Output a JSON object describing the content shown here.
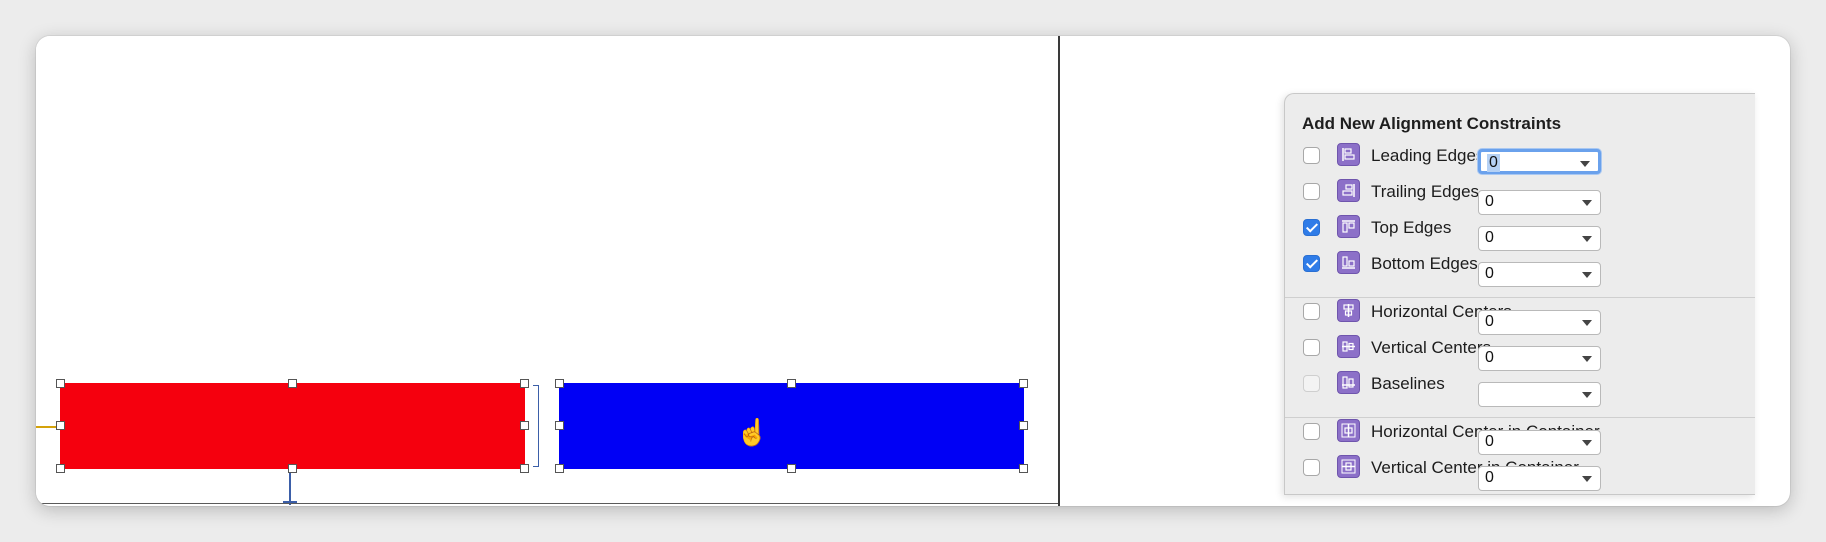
{
  "popover": {
    "title": "Add New Alignment Constraints",
    "rows": [
      {
        "label": "Leading Edges",
        "checked": false,
        "disabled": false,
        "value": "0",
        "icon": "leading-edges-icon"
      },
      {
        "label": "Trailing Edges",
        "checked": false,
        "disabled": false,
        "value": "0",
        "icon": "trailing-edges-icon"
      },
      {
        "label": "Top Edges",
        "checked": true,
        "disabled": false,
        "value": "0",
        "icon": "top-edges-icon"
      },
      {
        "label": "Bottom Edges",
        "checked": true,
        "disabled": false,
        "value": "0",
        "icon": "bottom-edges-icon"
      },
      {
        "label": "Horizontal Centers",
        "checked": false,
        "disabled": false,
        "value": "0",
        "icon": "horizontal-centers-icon"
      },
      {
        "label": "Vertical Centers",
        "checked": false,
        "disabled": false,
        "value": "0",
        "icon": "vertical-centers-icon"
      },
      {
        "label": "Baselines",
        "checked": false,
        "disabled": true,
        "value": "",
        "icon": "baselines-icon"
      },
      {
        "label": "Horizontal Center in Container",
        "checked": false,
        "disabled": false,
        "value": "0",
        "icon": "horizontal-center-in-container-icon"
      },
      {
        "label": "Vertical Center in Container",
        "checked": false,
        "disabled": false,
        "value": "0",
        "icon": "vertical-center-in-container-icon"
      }
    ]
  },
  "canvas": {
    "views": [
      {
        "name": "red-view",
        "color": "#f5000e"
      },
      {
        "name": "blue-view",
        "color": "#0000f5"
      }
    ],
    "cursor": "hand-cursor-icon"
  }
}
